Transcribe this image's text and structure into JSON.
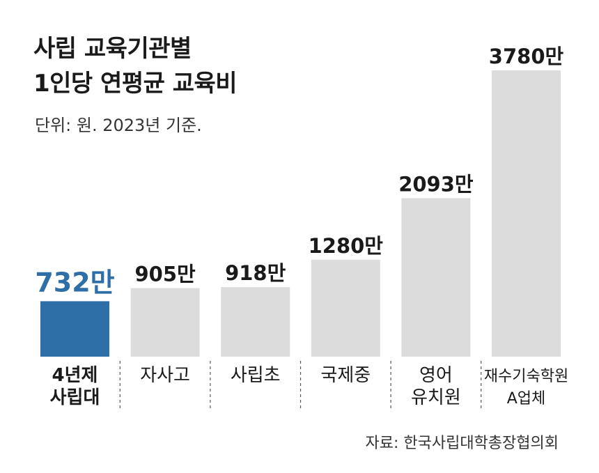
{
  "title_line1": "사립 교육기관별",
  "title_line2": "1인당 연평균 교육비",
  "unit_note": "단위: 원. 2023년 기준.",
  "source": "자료: 한국사립대학총장협의회",
  "colors": {
    "highlight": "#2f6fa8",
    "bar": "#dcdcdc",
    "divider": "#555555"
  },
  "chart_data": {
    "type": "bar",
    "categories": [
      [
        "4년제",
        "사립대"
      ],
      [
        "자사고"
      ],
      [
        "사립초"
      ],
      [
        "국제중"
      ],
      [
        "영어",
        "유치원"
      ],
      [
        "재수기숙학원",
        "A업체"
      ]
    ],
    "values": [
      732,
      905,
      918,
      1280,
      2093,
      3780
    ],
    "value_labels": [
      "732만",
      "905만",
      "918만",
      "1280만",
      "2093만",
      "3780만"
    ],
    "highlight_index": 0,
    "ylim": [
      0,
      3780
    ]
  }
}
